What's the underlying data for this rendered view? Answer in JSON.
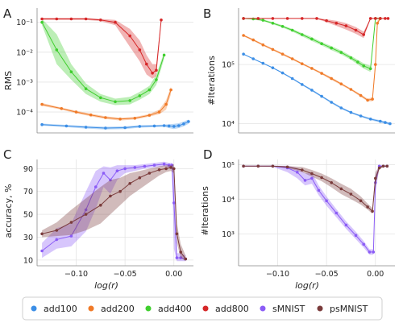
{
  "chart_data": [
    {
      "panel": "A",
      "type": "line",
      "xlabel": "",
      "ylabel": "RMS",
      "yscale": "log",
      "xlim": [
        -0.14,
        0.02
      ],
      "ylim": [
        2e-05,
        0.3
      ],
      "yticks": [
        0.0001,
        0.001,
        0.01,
        0.1
      ],
      "ytick_labels": [
        "10⁻⁴",
        "10⁻³",
        "10⁻²",
        "10⁻¹"
      ],
      "series": [
        {
          "name": "add100",
          "color": "#3b8ee6",
          "x": [
            -0.135,
            -0.11,
            -0.09,
            -0.07,
            -0.05,
            -0.035,
            -0.02,
            -0.01,
            -0.005,
            0.0,
            0.005,
            0.01,
            0.015
          ],
          "y": [
            3.8e-05,
            3.4e-05,
            3.1e-05,
            2.9e-05,
            3e-05,
            3.3e-05,
            3.4e-05,
            3.5e-05,
            3.4e-05,
            3.3e-05,
            3.5e-05,
            4e-05,
            4.8e-05
          ],
          "lo": [
            3.5e-05,
            3.1e-05,
            2.8e-05,
            2.6e-05,
            2.7e-05,
            3e-05,
            3.1e-05,
            3.2e-05,
            2.9e-05,
            2.7e-05,
            2.9e-05,
            3.3e-05,
            4e-05
          ],
          "hi": [
            4.1e-05,
            3.7e-05,
            3.4e-05,
            3.2e-05,
            3.3e-05,
            3.6e-05,
            3.7e-05,
            3.8e-05,
            3.9e-05,
            4e-05,
            4.2e-05,
            4.8e-05,
            5.6e-05
          ]
        },
        {
          "name": "add200",
          "color": "#f07a28",
          "x": [
            -0.135,
            -0.115,
            -0.1,
            -0.085,
            -0.07,
            -0.055,
            -0.04,
            -0.025,
            -0.015,
            -0.008,
            -0.003
          ],
          "y": [
            0.00018,
            0.00013,
            0.0001,
            8e-05,
            6.5e-05,
            5.8e-05,
            6.2e-05,
            7.8e-05,
            0.0001,
            0.00018,
            0.00055
          ],
          "lo": [
            0.00016,
            0.00012,
            9e-05,
            7.2e-05,
            5.8e-05,
            5.2e-05,
            5.6e-05,
            7e-05,
            8.5e-05,
            0.00012,
            0.0004
          ],
          "hi": [
            0.0002,
            0.00014,
            0.00011,
            8.8e-05,
            7.2e-05,
            6.4e-05,
            6.8e-05,
            8.6e-05,
            0.00012,
            0.00025,
            0.0007
          ]
        },
        {
          "name": "add400",
          "color": "#3fcf2e",
          "x": [
            -0.135,
            -0.12,
            -0.105,
            -0.09,
            -0.075,
            -0.06,
            -0.045,
            -0.035,
            -0.025,
            -0.018,
            -0.01
          ],
          "y": [
            0.1,
            0.012,
            0.0022,
            0.0006,
            0.0003,
            0.00022,
            0.00024,
            0.00035,
            0.00055,
            0.0012,
            0.008
          ],
          "lo": [
            0.08,
            0.004,
            0.0012,
            0.0004,
            0.00022,
            0.00017,
            0.00018,
            0.00026,
            0.0004,
            0.0008,
            0.006
          ],
          "hi": [
            0.13,
            0.04,
            0.004,
            0.0009,
            0.0004,
            0.00028,
            0.00032,
            0.00047,
            0.00075,
            0.0018,
            0.01
          ]
        },
        {
          "name": "add800",
          "color": "#d62728",
          "x": [
            -0.135,
            -0.12,
            -0.105,
            -0.09,
            -0.075,
            -0.06,
            -0.045,
            -0.035,
            -0.028,
            -0.022,
            -0.018,
            -0.013
          ],
          "y": [
            0.13,
            0.13,
            0.13,
            0.13,
            0.12,
            0.1,
            0.035,
            0.012,
            0.004,
            0.002,
            0.0025,
            0.12
          ],
          "lo": [
            0.12,
            0.12,
            0.12,
            0.12,
            0.11,
            0.08,
            0.015,
            0.005,
            0.0018,
            0.0013,
            0.0016,
            0.1
          ],
          "hi": [
            0.14,
            0.14,
            0.14,
            0.14,
            0.13,
            0.12,
            0.06,
            0.025,
            0.008,
            0.004,
            0.004,
            0.14
          ]
        }
      ]
    },
    {
      "panel": "B",
      "type": "line",
      "xlabel": "",
      "ylabel": "#Iterations",
      "yscale": "log",
      "xlim": [
        -0.14,
        0.02
      ],
      "ylim": [
        7000,
        900000
      ],
      "yticks": [
        10000,
        100000
      ],
      "ytick_labels": [
        "10⁴",
        "10⁵"
      ],
      "series": [
        {
          "name": "add100",
          "color": "#3b8ee6",
          "x": [
            -0.135,
            -0.125,
            -0.115,
            -0.105,
            -0.095,
            -0.085,
            -0.075,
            -0.065,
            -0.055,
            -0.045,
            -0.035,
            -0.025,
            -0.015,
            -0.005,
            0.005,
            0.01,
            0.015
          ],
          "y": [
            150000,
            125000,
            105000,
            88000,
            72000,
            58000,
            46000,
            37000,
            29000,
            23000,
            18500,
            15500,
            13500,
            12000,
            11000,
            10500,
            10000
          ],
          "lo": [
            148000,
            123000,
            103000,
            86000,
            70000,
            56000,
            44500,
            35500,
            28000,
            22000,
            17800,
            15000,
            13000,
            11500,
            10500,
            10000,
            9500
          ],
          "hi": [
            152000,
            127000,
            107000,
            90000,
            74000,
            60000,
            47500,
            38500,
            30000,
            24000,
            19200,
            16000,
            14000,
            12500,
            11500,
            11000,
            10500
          ]
        },
        {
          "name": "add200",
          "color": "#f07a28",
          "x": [
            -0.135,
            -0.125,
            -0.115,
            -0.105,
            -0.095,
            -0.085,
            -0.075,
            -0.065,
            -0.055,
            -0.045,
            -0.035,
            -0.025,
            -0.015,
            -0.008,
            -0.003,
            0.0,
            0.002,
            0.005
          ],
          "y": [
            310000,
            260000,
            215000,
            180000,
            150000,
            125000,
            103000,
            86000,
            71000,
            58000,
            47000,
            38000,
            30000,
            25000,
            26000,
            100000,
            500000,
            600000
          ],
          "lo": [
            300000,
            250000,
            207000,
            173000,
            144000,
            120000,
            99000,
            83000,
            68000,
            55000,
            45000,
            36500,
            28500,
            24000,
            24000,
            80000,
            450000,
            580000
          ],
          "hi": [
            320000,
            270000,
            223000,
            187000,
            156000,
            130000,
            107000,
            89000,
            74000,
            61000,
            49000,
            39500,
            31500,
            26500,
            28000,
            120000,
            550000,
            620000
          ]
        },
        {
          "name": "add400",
          "color": "#3fcf2e",
          "x": [
            -0.135,
            -0.125,
            -0.115,
            -0.105,
            -0.095,
            -0.085,
            -0.075,
            -0.065,
            -0.055,
            -0.045,
            -0.035,
            -0.025,
            -0.018,
            -0.012,
            -0.005,
            0.0,
            0.005
          ],
          "y": [
            600000,
            590000,
            560000,
            500000,
            440000,
            380000,
            320000,
            270000,
            225000,
            190000,
            160000,
            130000,
            110000,
            95000,
            85000,
            600000,
            600000
          ],
          "lo": [
            590000,
            575000,
            540000,
            480000,
            420000,
            360000,
            300000,
            250000,
            210000,
            175000,
            148000,
            120000,
            100000,
            85000,
            75000,
            580000,
            580000
          ],
          "hi": [
            610000,
            605000,
            580000,
            520000,
            460000,
            400000,
            340000,
            290000,
            240000,
            205000,
            172000,
            140000,
            120000,
            105000,
            95000,
            620000,
            620000
          ]
        },
        {
          "name": "add800",
          "color": "#d62728",
          "x": [
            -0.135,
            -0.12,
            -0.105,
            -0.09,
            -0.075,
            -0.06,
            -0.05,
            -0.04,
            -0.03,
            -0.02,
            -0.012,
            -0.005,
            0.0,
            0.005,
            0.01,
            0.013
          ],
          "y": [
            600000,
            600000,
            600000,
            600000,
            600000,
            600000,
            550000,
            500000,
            450000,
            380000,
            320000,
            600000,
            600000,
            600000,
            600000,
            600000
          ],
          "lo": [
            595000,
            595000,
            595000,
            595000,
            595000,
            590000,
            520000,
            450000,
            390000,
            330000,
            280000,
            595000,
            595000,
            595000,
            595000,
            595000
          ],
          "hi": [
            605000,
            605000,
            605000,
            605000,
            605000,
            610000,
            580000,
            550000,
            500000,
            430000,
            360000,
            605000,
            605000,
            605000,
            605000,
            605000
          ]
        }
      ]
    },
    {
      "panel": "C",
      "type": "line",
      "xlabel": "log(r)",
      "ylabel": "accuracy, %",
      "yscale": "linear",
      "xlim": [
        -0.14,
        0.02
      ],
      "ylim": [
        5,
        98
      ],
      "yticks": [
        10,
        30,
        50,
        70,
        90
      ],
      "xticks": [
        -0.1,
        -0.05,
        0.0
      ],
      "xtick_labels": [
        "−0.10",
        "−0.05",
        "0.00"
      ],
      "series": [
        {
          "name": "sMNIST",
          "color": "#8b5cf6",
          "x": [
            -0.135,
            -0.12,
            -0.105,
            -0.09,
            -0.08,
            -0.072,
            -0.065,
            -0.058,
            -0.05,
            -0.04,
            -0.03,
            -0.02,
            -0.01,
            -0.005,
            -0.002,
            0.0,
            0.003,
            0.007,
            0.012
          ],
          "y": [
            18,
            28,
            31,
            54,
            74,
            86,
            80,
            88,
            90,
            91,
            92,
            93,
            94,
            93,
            93,
            60,
            12,
            12,
            11
          ],
          "lo": [
            12,
            20,
            22,
            35,
            55,
            74,
            68,
            80,
            86,
            88,
            90,
            91,
            92,
            91,
            91,
            20,
            9,
            9,
            9
          ],
          "hi": [
            25,
            38,
            42,
            70,
            88,
            92,
            91,
            93,
            93,
            93,
            94,
            95,
            96,
            95,
            95,
            90,
            16,
            16,
            14
          ]
        },
        {
          "name": "psMNIST",
          "color": "#7a3b3b",
          "x": [
            -0.135,
            -0.12,
            -0.105,
            -0.09,
            -0.075,
            -0.065,
            -0.055,
            -0.045,
            -0.035,
            -0.025,
            -0.015,
            -0.008,
            -0.003,
            0.0,
            0.003,
            0.007,
            0.012
          ],
          "y": [
            33,
            36,
            43,
            50,
            58,
            66,
            70,
            77,
            82,
            86,
            89,
            90,
            91,
            90,
            33,
            17,
            11
          ],
          "lo": [
            30,
            31,
            32,
            36,
            42,
            50,
            58,
            66,
            72,
            78,
            84,
            87,
            88,
            86,
            25,
            12,
            9
          ],
          "hi": [
            36,
            43,
            54,
            64,
            74,
            80,
            82,
            86,
            88,
            90,
            92,
            93,
            93,
            94,
            42,
            24,
            14
          ]
        }
      ]
    },
    {
      "panel": "D",
      "type": "line",
      "xlabel": "log(r)",
      "ylabel": "#Iterations",
      "yscale": "log",
      "xlim": [
        -0.14,
        0.02
      ],
      "ylim": [
        120,
        140000
      ],
      "yticks": [
        1000,
        10000,
        100000
      ],
      "ytick_labels": [
        "10³",
        "10⁴",
        "10⁵"
      ],
      "xticks": [
        -0.1,
        -0.05,
        0.0
      ],
      "xtick_labels": [
        "−0.10",
        "−0.05",
        "0.00"
      ],
      "series": [
        {
          "name": "sMNIST",
          "color": "#8b5cf6",
          "x": [
            -0.135,
            -0.12,
            -0.105,
            -0.09,
            -0.08,
            -0.072,
            -0.065,
            -0.058,
            -0.05,
            -0.04,
            -0.03,
            -0.02,
            -0.012,
            -0.006,
            -0.002,
            0.0,
            0.004,
            0.008,
            0.012
          ],
          "y": [
            90000,
            90000,
            90000,
            80000,
            60000,
            35000,
            40000,
            18000,
            9000,
            4000,
            1800,
            900,
            500,
            300,
            300,
            30000,
            90000,
            90000,
            90000
          ],
          "lo": [
            88000,
            88000,
            85000,
            60000,
            40000,
            25000,
            28000,
            13000,
            6500,
            3000,
            1400,
            700,
            400,
            250,
            250,
            15000,
            85000,
            85000,
            85000
          ],
          "hi": [
            92000,
            92000,
            92000,
            92000,
            80000,
            55000,
            60000,
            25000,
            12000,
            5200,
            2300,
            1150,
            620,
            360,
            360,
            50000,
            95000,
            95000,
            95000
          ]
        },
        {
          "name": "psMNIST",
          "color": "#7a3b3b",
          "x": [
            -0.135,
            -0.12,
            -0.105,
            -0.09,
            -0.075,
            -0.065,
            -0.055,
            -0.045,
            -0.035,
            -0.025,
            -0.015,
            -0.008,
            -0.003,
            0.0,
            0.004,
            0.008,
            0.012
          ],
          "y": [
            90000,
            90000,
            90000,
            85000,
            70000,
            55000,
            42000,
            30000,
            20000,
            14000,
            9000,
            6000,
            4500,
            40000,
            80000,
            90000,
            90000
          ],
          "lo": [
            88000,
            88000,
            88000,
            80000,
            60000,
            45000,
            33000,
            22000,
            14000,
            10000,
            7000,
            5000,
            3800,
            25000,
            70000,
            88000,
            88000
          ],
          "hi": [
            92000,
            92000,
            92000,
            90000,
            85000,
            70000,
            55000,
            40000,
            28000,
            20000,
            12000,
            7500,
            5500,
            60000,
            90000,
            92000,
            92000
          ]
        }
      ]
    }
  ],
  "legend": {
    "entries": [
      {
        "label": "add100",
        "color": "#3b8ee6"
      },
      {
        "label": "add200",
        "color": "#f07a28"
      },
      {
        "label": "add400",
        "color": "#3fcf2e"
      },
      {
        "label": "add800",
        "color": "#d62728"
      },
      {
        "label": "sMNIST",
        "color": "#8b5cf6"
      },
      {
        "label": "psMNIST",
        "color": "#7a3b3b"
      }
    ]
  }
}
